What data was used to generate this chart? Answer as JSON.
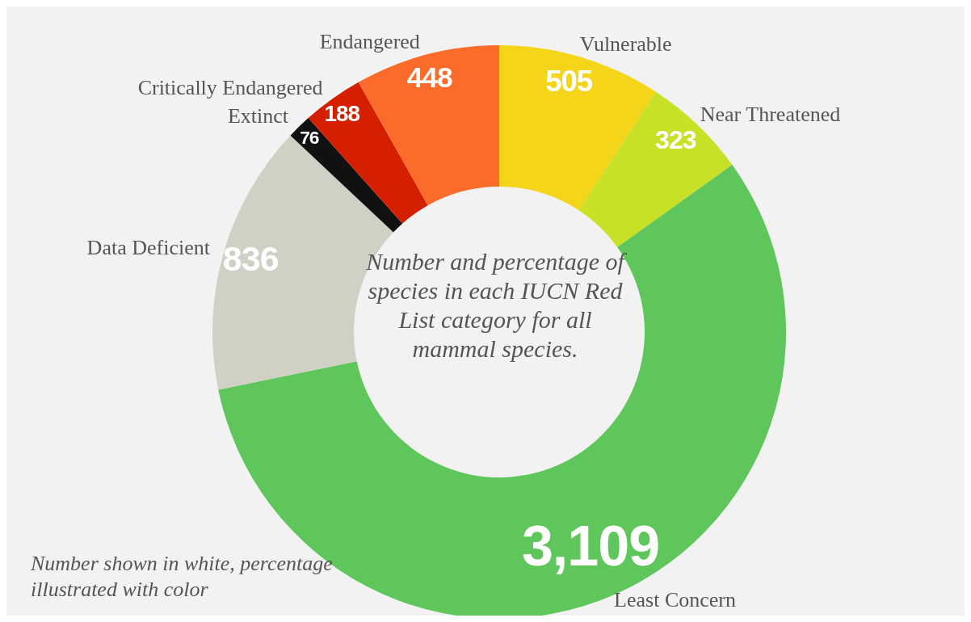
{
  "chart_data": {
    "type": "donut",
    "categories": [
      "Vulnerable",
      "Near Threatened",
      "Least Concern",
      "Data Deficient",
      "Extinct",
      "Critically Endangered",
      "Endangered"
    ],
    "values": [
      505,
      323,
      3109,
      836,
      76,
      188,
      448
    ],
    "colors": [
      "#f5d51a",
      "#c8e026",
      "#5ec65a",
      "#d0d0c4",
      "#111111",
      "#d42000",
      "#fb6b2a"
    ],
    "value_labels": [
      "505",
      "323",
      "3,109",
      "836",
      "76",
      "188",
      "448"
    ],
    "annotations": [
      "Number and percentage of species in each IUCN Red List category for all mammal species.",
      "Number shown in white, percentage illustrated with color"
    ]
  }
}
